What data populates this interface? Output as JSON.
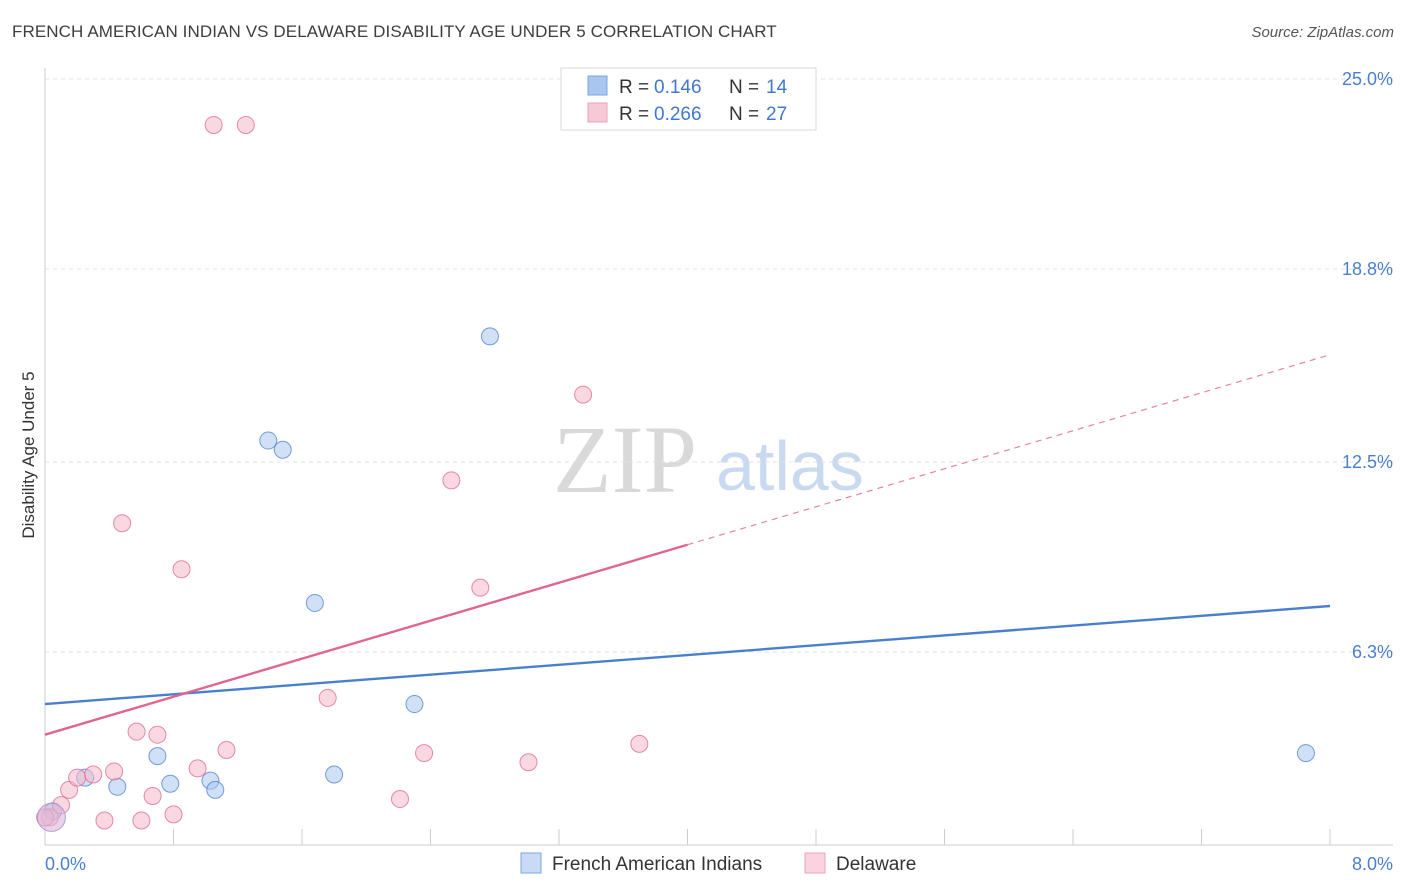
{
  "title": "FRENCH AMERICAN INDIAN VS DELAWARE DISABILITY AGE UNDER 5 CORRELATION CHART",
  "source": "Source: ZipAtlas.com",
  "watermark": {
    "zip": "ZIP",
    "atlas": "atlas"
  },
  "legend": {
    "rows": [
      {
        "r_label": "R =",
        "r_value": "0.146",
        "n_label": "N =",
        "n_value": "14",
        "color": "#a9c6ef"
      },
      {
        "r_label": "R =",
        "r_value": "0.266",
        "n_label": "N =",
        "n_value": "27",
        "color": "#f6b8cb"
      }
    ]
  },
  "chart_data": {
    "type": "scatter",
    "title": "FRENCH AMERICAN INDIAN VS DELAWARE DISABILITY AGE UNDER 5 CORRELATION CHART",
    "xlabel": "",
    "ylabel": "Disability Age Under 5",
    "xlim": [
      0,
      8
    ],
    "ylim": [
      0,
      25
    ],
    "x_tick_labels": [
      "0.0%",
      "8.0%"
    ],
    "y_ticks": [
      6.3,
      12.5,
      18.8,
      25.0
    ],
    "y_tick_labels": [
      "6.3%",
      "12.5%",
      "18.8%",
      "25.0%"
    ],
    "grid": true,
    "series": [
      {
        "name": "French American Indians",
        "color": "#4a7fcf",
        "fill": "#a9c6ef",
        "r": 0.146,
        "n": 14,
        "points": [
          [
            0.05,
            1.1
          ],
          [
            0.25,
            2.2
          ],
          [
            0.45,
            1.9
          ],
          [
            0.7,
            2.9
          ],
          [
            0.78,
            2.0
          ],
          [
            1.03,
            2.1
          ],
          [
            1.06,
            1.8
          ],
          [
            1.39,
            13.2
          ],
          [
            1.48,
            12.9
          ],
          [
            1.68,
            7.9
          ],
          [
            1.8,
            2.3
          ],
          [
            2.3,
            4.6
          ],
          [
            2.77,
            16.6
          ],
          [
            7.85,
            3.0
          ]
        ],
        "trend": {
          "x0": 0.0,
          "y0": 4.6,
          "x1": 8.0,
          "y1": 7.8
        }
      },
      {
        "name": "Delaware",
        "color": "#e0658f",
        "fill": "#f6b8cb",
        "r": 0.266,
        "n": 27,
        "points": [
          [
            0.03,
            0.9
          ],
          [
            0.1,
            1.3
          ],
          [
            0.15,
            1.8
          ],
          [
            0.2,
            2.2
          ],
          [
            0.3,
            2.3
          ],
          [
            0.37,
            0.8
          ],
          [
            0.43,
            2.4
          ],
          [
            0.48,
            10.5
          ],
          [
            0.57,
            3.7
          ],
          [
            0.6,
            0.8
          ],
          [
            0.67,
            1.6
          ],
          [
            0.7,
            3.6
          ],
          [
            0.8,
            1.0
          ],
          [
            0.85,
            9.0
          ],
          [
            0.95,
            2.5
          ],
          [
            1.05,
            23.5
          ],
          [
            1.13,
            3.1
          ],
          [
            1.25,
            23.5
          ],
          [
            1.76,
            4.8
          ],
          [
            2.21,
            1.5
          ],
          [
            2.36,
            3.0
          ],
          [
            2.53,
            11.9
          ],
          [
            2.71,
            8.4
          ],
          [
            3.01,
            2.7
          ],
          [
            3.35,
            14.7
          ],
          [
            3.7,
            3.3
          ],
          [
            0.0,
            0.9
          ]
        ],
        "trend": {
          "x0": 0.0,
          "y0": 3.6,
          "x1": 4.0,
          "y1": 9.8,
          "dashed_to": {
            "x": 8.0,
            "y": 16.0
          }
        }
      }
    ],
    "bottom_legend": [
      "French American Indians",
      "Delaware"
    ]
  }
}
